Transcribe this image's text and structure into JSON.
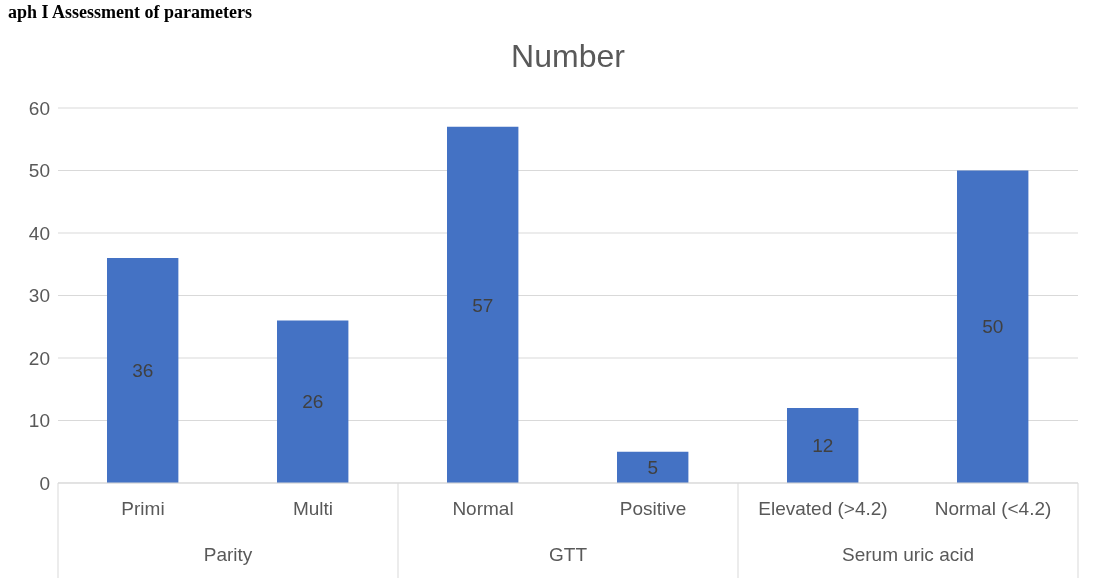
{
  "chart_data": {
    "type": "bar",
    "title": "aph I Assessment of parameters",
    "subtitle": "Number",
    "categories": [
      "Primi",
      "Multi",
      "Normal",
      "Positive",
      "Elevated (>4.2)",
      "Normal (<4.2)"
    ],
    "annotations": [
      "Parity",
      "GTT",
      "Serum uric acid"
    ],
    "values": [
      36,
      26,
      57,
      5,
      12,
      50
    ],
    "color": "#4472c4",
    "ylim": [
      0,
      60
    ],
    "yticks": [
      0,
      10,
      20,
      30,
      40,
      50,
      60
    ],
    "grid": "y",
    "data_labels": true
  }
}
